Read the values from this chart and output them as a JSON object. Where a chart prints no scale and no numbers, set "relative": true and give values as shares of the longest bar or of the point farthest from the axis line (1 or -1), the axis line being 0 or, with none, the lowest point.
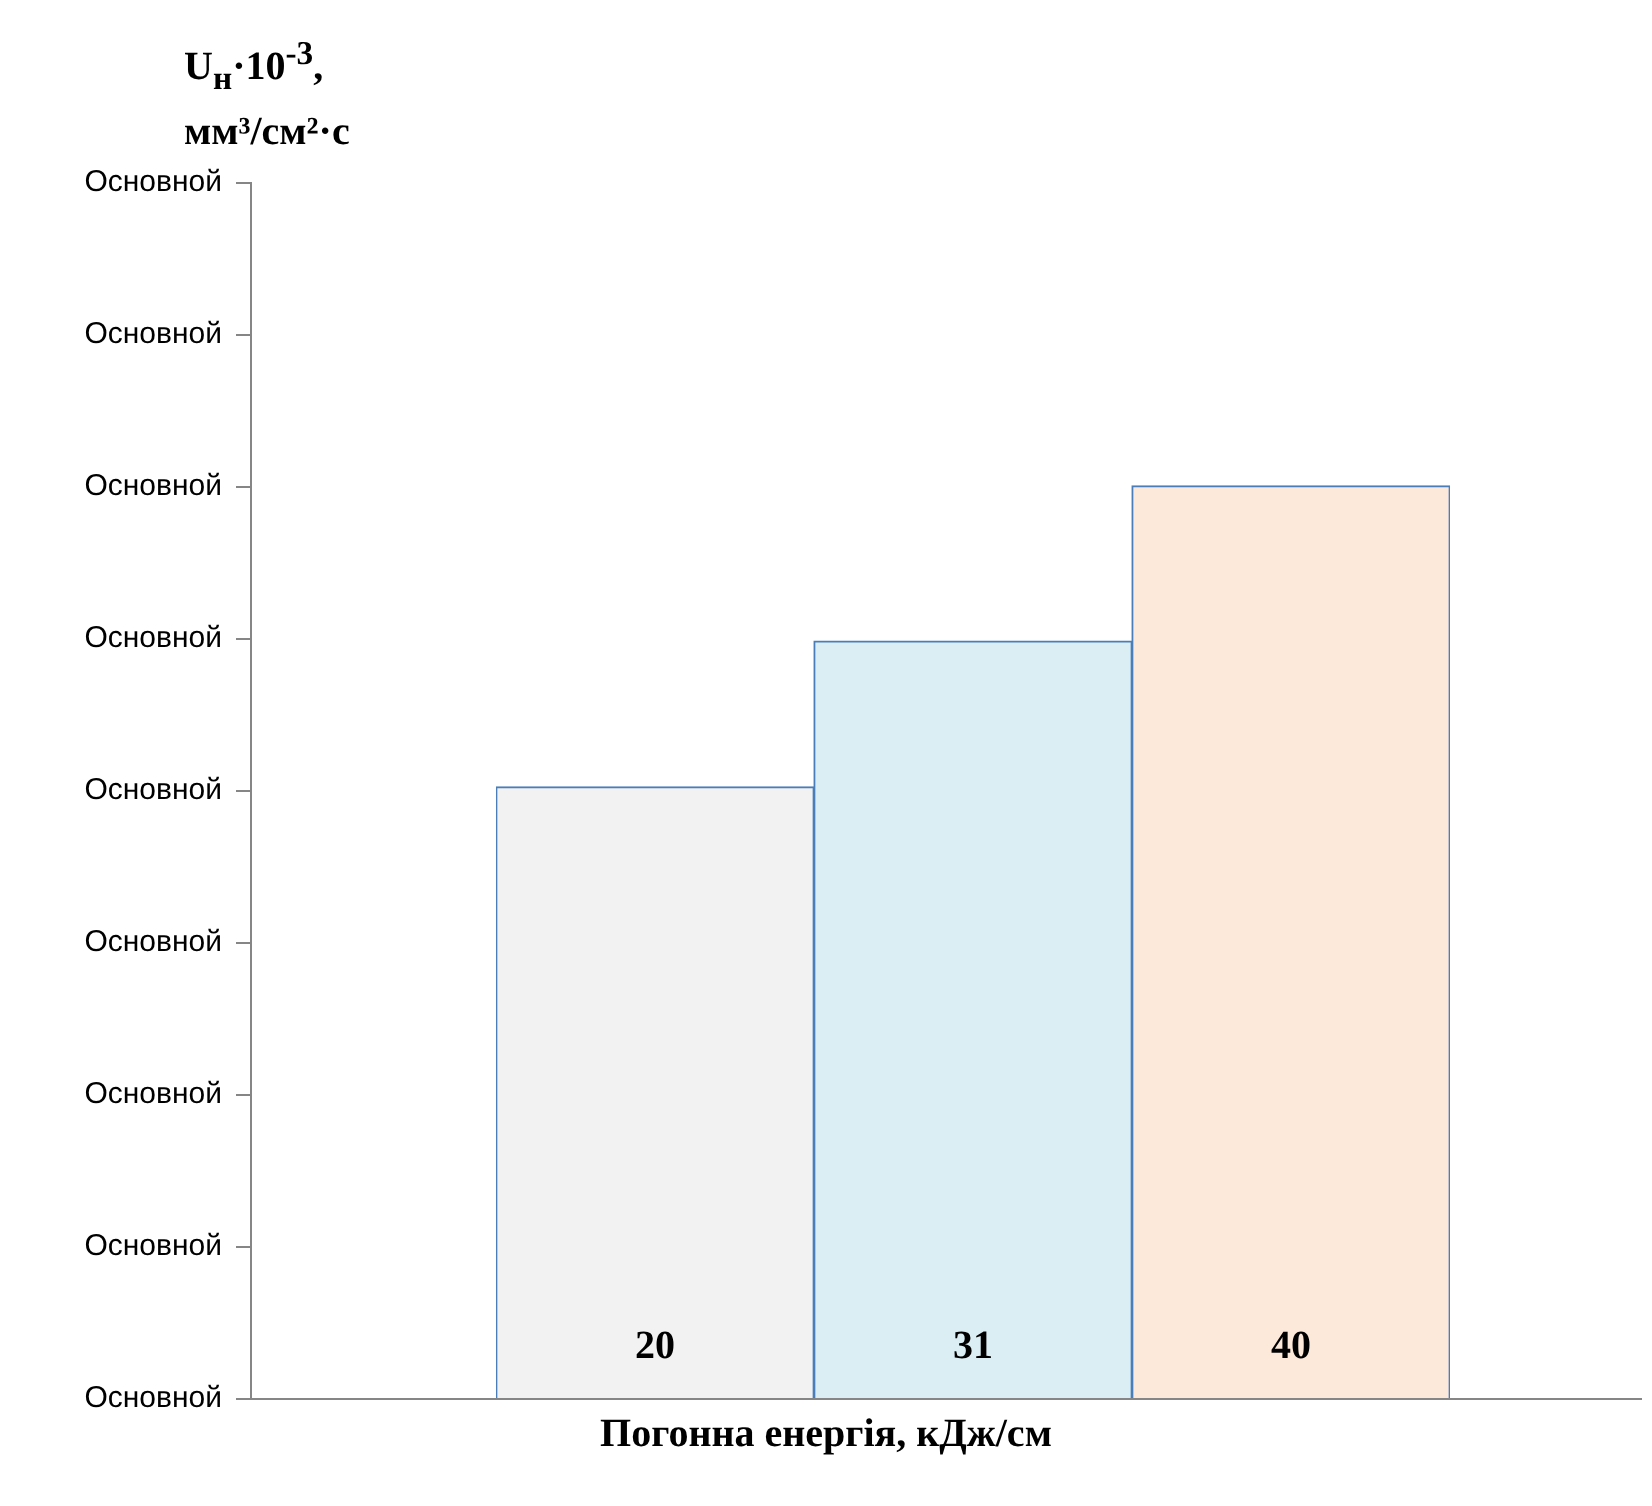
{
  "chart_data": {
    "type": "bar",
    "xlabel": "Погонна енергія, кДж/см",
    "categories": [
      "20",
      "31",
      "40"
    ],
    "values": [
      0.67,
      0.83,
      1
    ],
    "colors": [
      "#f2f2f2",
      "#daeef3",
      "#fde9d9"
    ],
    "relative": true,
    "annotations": [
      "U$_{н}$·10$^{-3}$, мм³/см²·с",
      "Основной",
      "Основной",
      "Основной",
      "Основной",
      "Основной",
      "Основной",
      "Основной",
      "Основной",
      "Основной"
    ],
    "grid": false,
    "legend": false
  }
}
